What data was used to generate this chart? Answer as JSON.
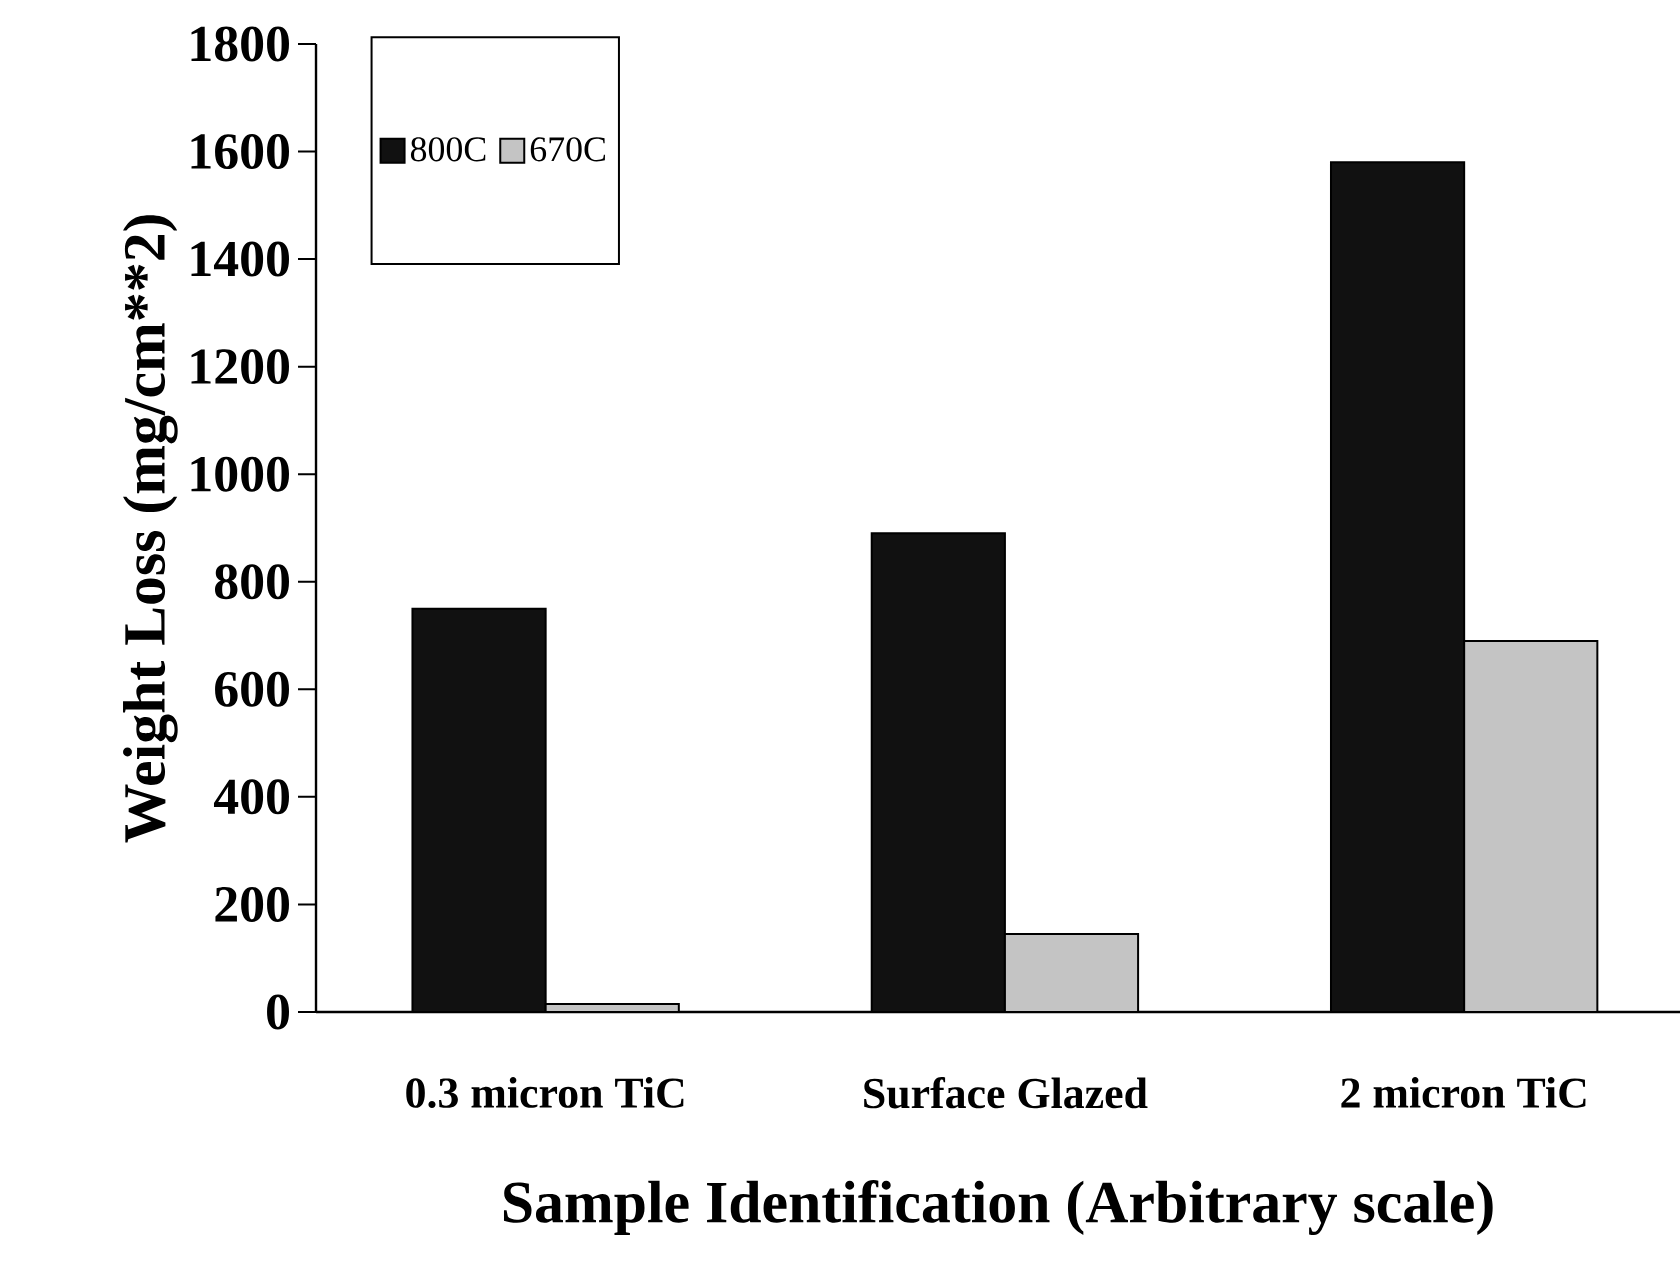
{
  "chart_data": {
    "type": "bar",
    "xlabel": "Sample Identification (Arbitrary scale)",
    "ylabel": "Weight Loss (mg/cm**2)",
    "categories": [
      "0.3 micron TiC",
      "Surface Glazed",
      "2 micron TiC"
    ],
    "series": [
      {
        "name": "800C",
        "color": "#111111",
        "values": [
          750,
          890,
          1580
        ]
      },
      {
        "name": "670C",
        "color": "#c4c4c4",
        "values": [
          15,
          145,
          690
        ]
      }
    ],
    "ylim": [
      0,
      1800
    ],
    "yticks": [
      0,
      200,
      400,
      600,
      800,
      1000,
      1200,
      1400,
      1600,
      1800
    ],
    "grid": false,
    "legend": "top left"
  }
}
